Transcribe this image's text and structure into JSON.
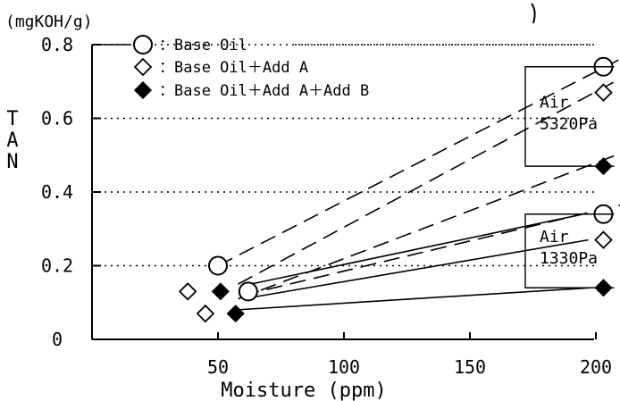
{
  "chart_data": {
    "type": "scatter",
    "title": "",
    "ylabel": "TAN",
    "yunit": "(mgKOH/g)",
    "xlabel": "Moisture (ppm)",
    "xlim": [
      0,
      245
    ],
    "ylim": [
      0,
      0.8
    ],
    "xticks": [
      50,
      100,
      150,
      200
    ],
    "xtick_labels": [
      "50",
      "100",
      "150",
      "200"
    ],
    "yticks": [
      0,
      0.2,
      0.4,
      0.6,
      0.8
    ],
    "ytick_labels": [
      "0",
      "0.2",
      "0.4",
      "0.6",
      "0.8"
    ],
    "grid": "dotted horizontal at 0.2, 0.4, 0.6, 0.8",
    "legend_position": "top-left",
    "series": [
      {
        "name": "：Base Oil",
        "marker": "open-circle",
        "points": [
          {
            "x": 50,
            "y": 0.2,
            "condition": "5320Pa"
          },
          {
            "x": 62,
            "y": 0.13,
            "condition": "1330Pa"
          },
          {
            "x": 203,
            "y": 0.74,
            "condition": "5320Pa"
          },
          {
            "x": 203,
            "y": 0.34,
            "condition": "1330Pa"
          }
        ]
      },
      {
        "name": "：Base Oil＋Add A",
        "marker": "open-diamond",
        "points": [
          {
            "x": 38,
            "y": 0.13,
            "condition": "5320Pa"
          },
          {
            "x": 45,
            "y": 0.07,
            "condition": "1330Pa"
          },
          {
            "x": 203,
            "y": 0.67,
            "condition": "5320Pa"
          },
          {
            "x": 203,
            "y": 0.27,
            "condition": "1330Pa"
          }
        ]
      },
      {
        "name": "：Base Oil＋Add A＋Add B",
        "marker": "filled-diamond",
        "points": [
          {
            "x": 51,
            "y": 0.13,
            "condition": "5320Pa"
          },
          {
            "x": 57,
            "y": 0.07,
            "condition": "1330Pa"
          },
          {
            "x": 203,
            "y": 0.47,
            "condition": "5320Pa"
          },
          {
            "x": 203,
            "y": 0.14,
            "condition": "1330Pa"
          }
        ]
      }
    ],
    "trend_lines": [
      {
        "style": "dashed",
        "from": [
          50,
          0.2
        ],
        "to": [
          218,
          0.79
        ]
      },
      {
        "style": "dashed",
        "from": [
          58,
          0.15
        ],
        "to": [
          213,
          0.72
        ]
      },
      {
        "style": "dashed",
        "from": [
          58,
          0.11
        ],
        "to": [
          208,
          0.5
        ]
      },
      {
        "style": "dashed",
        "from": [
          60,
          0.12
        ],
        "to": [
          213,
          0.37
        ]
      },
      {
        "style": "solid",
        "from": [
          63,
          0.15
        ],
        "to": [
          195,
          0.34
        ]
      },
      {
        "style": "solid",
        "from": [
          60,
          0.11
        ],
        "to": [
          197,
          0.27
        ]
      },
      {
        "style": "solid",
        "from": [
          57,
          0.08
        ],
        "to": [
          198,
          0.14
        ]
      }
    ],
    "groups": [
      {
        "line1": "Air",
        "line2": "5320Pa",
        "y_range": [
          0.47,
          0.74
        ]
      },
      {
        "line1": "Air",
        "line2": "1330Pa",
        "y_range": [
          0.14,
          0.34
        ]
      }
    ]
  }
}
